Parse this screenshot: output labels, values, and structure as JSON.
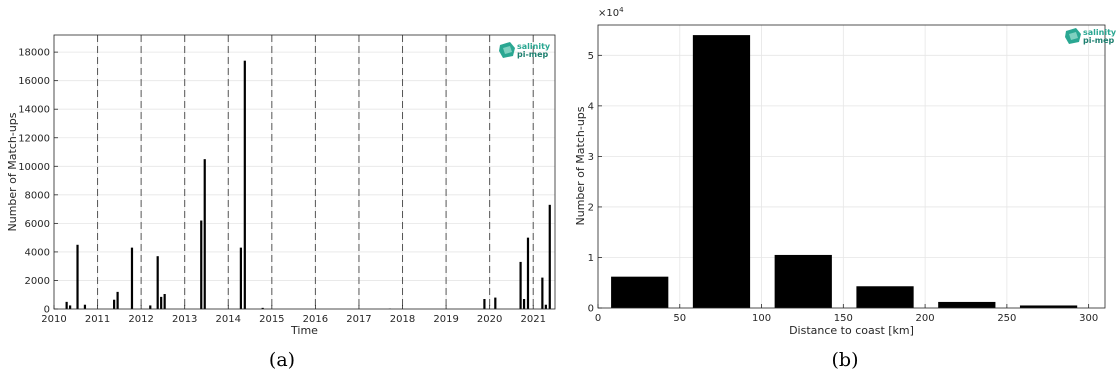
{
  "chart_data": [
    {
      "type": "bar",
      "panel_caption": "(a)",
      "xlabel": "Time",
      "ylabel": "Number of Match-ups",
      "xlim": [
        2010,
        2021.5
      ],
      "ylim": [
        0,
        19200
      ],
      "xticks": [
        2010,
        2011,
        2012,
        2013,
        2014,
        2015,
        2016,
        2017,
        2018,
        2019,
        2020,
        2021
      ],
      "xtick_labels": [
        "2010",
        "2011",
        "2012",
        "2013",
        "2014",
        "2015",
        "2016",
        "2017",
        "2018",
        "2019",
        "2020",
        "2021"
      ],
      "yticks": [
        0,
        2000,
        4000,
        6000,
        8000,
        10000,
        12000,
        14000,
        16000,
        18000
      ],
      "ytick_labels": [
        "0",
        "2000",
        "4000",
        "6000",
        "8000",
        "10000",
        "12000",
        "14000",
        "16000",
        "18000"
      ],
      "year_dividers": [
        2011,
        2012,
        2013,
        2014,
        2015,
        2016,
        2017,
        2018,
        2019,
        2020,
        2021
      ],
      "x": [
        2010.29,
        2010.37,
        2010.54,
        2010.71,
        2011.38,
        2011.46,
        2011.79,
        2012.21,
        2012.38,
        2012.46,
        2012.54,
        2013.38,
        2013.46,
        2014.29,
        2014.38,
        2014.79,
        2017.71,
        2019.88,
        2020.13,
        2020.71,
        2020.79,
        2020.88,
        2021.21,
        2021.29,
        2021.38
      ],
      "values": [
        500,
        250,
        4500,
        300,
        650,
        1200,
        4300,
        250,
        3700,
        850,
        1050,
        6200,
        10500,
        4300,
        17400,
        80,
        30,
        700,
        800,
        3300,
        700,
        5000,
        2200,
        300,
        7300
      ],
      "logo": {
        "line1": "salinity",
        "line2": "pi-mep"
      }
    },
    {
      "type": "bar",
      "panel_caption": "(b)",
      "xlabel": "Distance to coast [km]",
      "ylabel": "Number of Match-ups",
      "xlim": [
        0,
        310
      ],
      "ylim": [
        0,
        56000
      ],
      "y_multiplier": "×10",
      "y_multiplier_exp": "4",
      "xticks": [
        0,
        50,
        100,
        150,
        200,
        250,
        300
      ],
      "xtick_labels": [
        "0",
        "50",
        "100",
        "150",
        "200",
        "250",
        "300"
      ],
      "yticks": [
        0,
        10000,
        20000,
        30000,
        40000,
        50000
      ],
      "ytick_labels": [
        "0",
        "1",
        "2",
        "3",
        "4",
        "5"
      ],
      "bins": [
        [
          8,
          43
        ],
        [
          58,
          93
        ],
        [
          108,
          143
        ],
        [
          158,
          193
        ],
        [
          208,
          243
        ],
        [
          258,
          293
        ]
      ],
      "values": [
        6200,
        54000,
        10500,
        4300,
        1200,
        500
      ],
      "logo": {
        "line1": "salinity",
        "line2": "pi-mep"
      }
    }
  ]
}
